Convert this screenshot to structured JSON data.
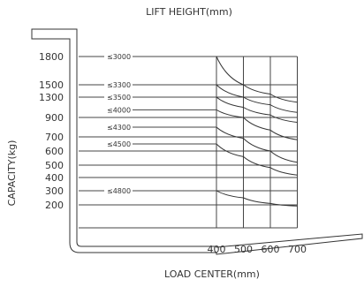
{
  "chart_data": {
    "type": "line",
    "title": "LIFT HEIGHT(mm)",
    "xlabel": "LOAD CENTER(mm)",
    "ylabel": "CAPACITY(kg)",
    "x_ticks": [
      400,
      500,
      600,
      700
    ],
    "y_ticks": [
      1800,
      1500,
      1300,
      900,
      700,
      600,
      500,
      400,
      300,
      200
    ],
    "grid": true,
    "series": [
      {
        "name": "≤3000",
        "x": [
          400,
          500,
          600,
          700
        ],
        "y": [
          1800,
          1500,
          1350,
          1200
        ]
      },
      {
        "name": "≤3300",
        "x": [
          400,
          500,
          600,
          700
        ],
        "y": [
          1500,
          1300,
          1150,
          1000
        ]
      },
      {
        "name": "≤3500",
        "x": [
          400,
          500,
          600,
          700
        ],
        "y": [
          1300,
          1100,
          950,
          850
        ]
      },
      {
        "name": "≤4000",
        "x": [
          400,
          500,
          600,
          700
        ],
        "y": [
          1050,
          900,
          770,
          680
        ]
      },
      {
        "name": "≤4300",
        "x": [
          400,
          500,
          600,
          700
        ],
        "y": [
          800,
          690,
          600,
          520
        ]
      },
      {
        "name": "≤4500",
        "x": [
          400,
          500,
          600,
          700
        ],
        "y": [
          650,
          560,
          480,
          420
        ]
      },
      {
        "name": "≤4800",
        "x": [
          400,
          500,
          600,
          700
        ],
        "y": [
          300,
          250,
          210,
          190
        ]
      }
    ]
  }
}
